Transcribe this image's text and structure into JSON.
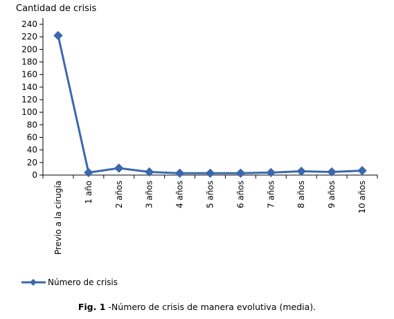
{
  "chart_data": {
    "type": "line",
    "ylabel": "Cantidad de crisis",
    "categories": [
      "Previo a la cirugía",
      "1 año",
      "2 años",
      "3 años",
      "4 años",
      "5 años",
      "6 años",
      "7 años",
      "8 años",
      "9 años",
      "10 años"
    ],
    "series": [
      {
        "name": "Número de crisis",
        "values": [
          222,
          4,
          11,
          5,
          3,
          3,
          3,
          4,
          6,
          5,
          7
        ]
      }
    ],
    "yticks": [
      0,
      20,
      40,
      60,
      80,
      100,
      120,
      140,
      160,
      180,
      200,
      220,
      240
    ],
    "ylim": [
      0,
      250
    ],
    "grid": false,
    "legend_position": "bottom-left",
    "series_color": "#3a67ae"
  },
  "caption": {
    "label": "Fig. 1",
    "text": " -Número de crisis de manera evolutiva (media)."
  }
}
